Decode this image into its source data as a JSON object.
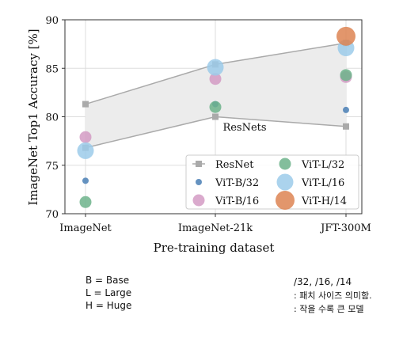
{
  "chart_data": {
    "type": "scatter",
    "categories": [
      "ImageNet",
      "ImageNet-21k",
      "JFT-300M"
    ],
    "xlabel": "Pre-training dataset",
    "ylabel": "ImageNet Top1 Accuracy [%]",
    "ylim": [
      70,
      90
    ],
    "yticks": [
      70,
      75,
      80,
      85,
      90
    ],
    "grid": true,
    "legend_position": "bottom-right",
    "resnet_band": {
      "upper": [
        81.3,
        85.4,
        87.6
      ],
      "lower": [
        76.8,
        80.0,
        79.0
      ],
      "label": "ResNets",
      "color": "#aaaaaa",
      "fill": "#ececec"
    },
    "series": [
      {
        "name": "ResNet",
        "marker": "square",
        "color": "#aaaaaa",
        "values": [
          [
            81.3,
            76.8
          ],
          [
            85.4,
            80.0
          ],
          [
            87.6,
            79.0
          ]
        ]
      },
      {
        "name": "ViT-B/32",
        "marker": "circle",
        "color": "#4a7fb5",
        "size": "small",
        "values": [
          73.4,
          81.3,
          80.7
        ]
      },
      {
        "name": "ViT-B/16",
        "marker": "circle",
        "color": "#d49bc4",
        "size": "medium",
        "values": [
          77.9,
          83.9,
          84.1
        ]
      },
      {
        "name": "ViT-L/32",
        "marker": "circle",
        "color": "#6db38b",
        "size": "medium",
        "values": [
          71.2,
          81.0,
          84.3
        ]
      },
      {
        "name": "ViT-L/16",
        "marker": "circle",
        "color": "#9ccbea",
        "size": "large",
        "values": [
          76.5,
          85.1,
          87.1
        ]
      },
      {
        "name": "ViT-H/14",
        "marker": "circle",
        "color": "#dd8452",
        "size": "xlarge",
        "values": [
          null,
          null,
          88.3
        ]
      }
    ]
  },
  "notes": {
    "left": [
      "B = Base",
      "L = Large",
      "H = Huge"
    ],
    "right": [
      "/32, /16, /14",
      ": 패치 사이즈 의미함.",
      ": 작을 수록 큰 모델"
    ]
  }
}
